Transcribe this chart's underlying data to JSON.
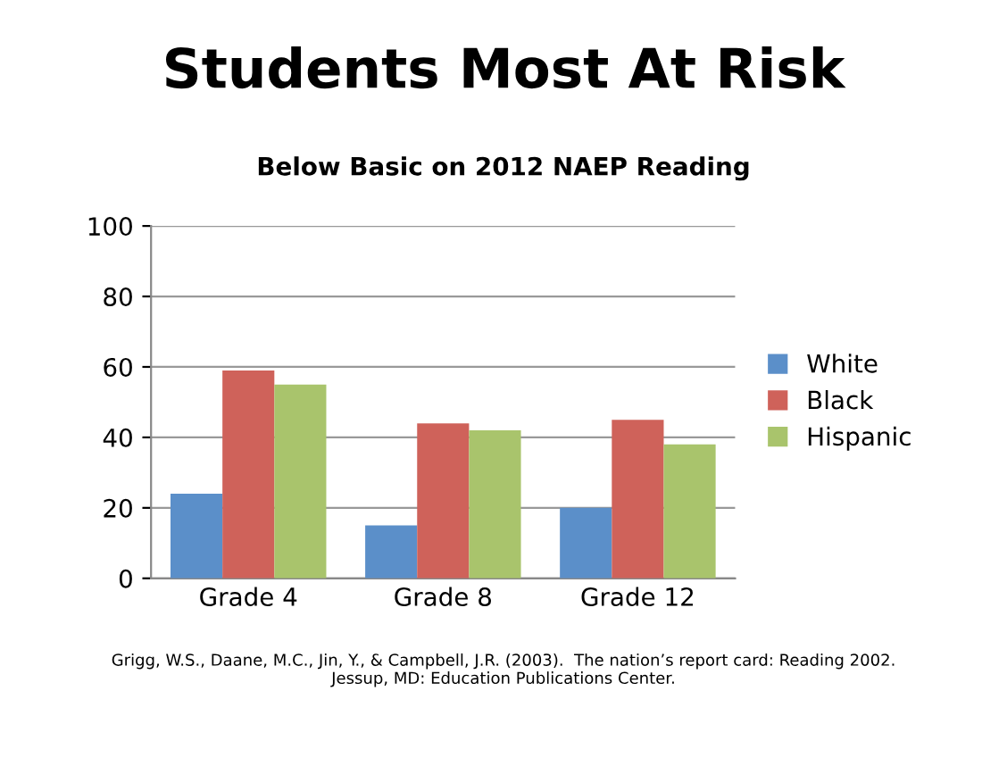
{
  "chart_data": {
    "type": "bar",
    "title": "Students Most At Risk",
    "subtitle": "Below Basic on 2012 NAEP Reading",
    "categories": [
      "Grade 4",
      "Grade 8",
      "Grade 12"
    ],
    "series": [
      {
        "name": "White",
        "color": "#5b8fc9",
        "values": [
          24,
          15,
          20
        ]
      },
      {
        "name": "Black",
        "color": "#cf625a",
        "values": [
          59,
          44,
          45
        ]
      },
      {
        "name": "Hispanic",
        "color": "#a9c46c",
        "values": [
          55,
          42,
          38
        ]
      }
    ],
    "ylim": [
      0,
      100
    ],
    "yticks": [
      0,
      20,
      40,
      60,
      80,
      100
    ],
    "grid": "y",
    "legend": "right",
    "annotations": [
      "Grigg, W.S., Daane, M.C., Jin, Y., & Campbell, J.R. (2003).  The nation’s report card: Reading 2002.\nJessup, MD: Education Publications Center."
    ]
  }
}
